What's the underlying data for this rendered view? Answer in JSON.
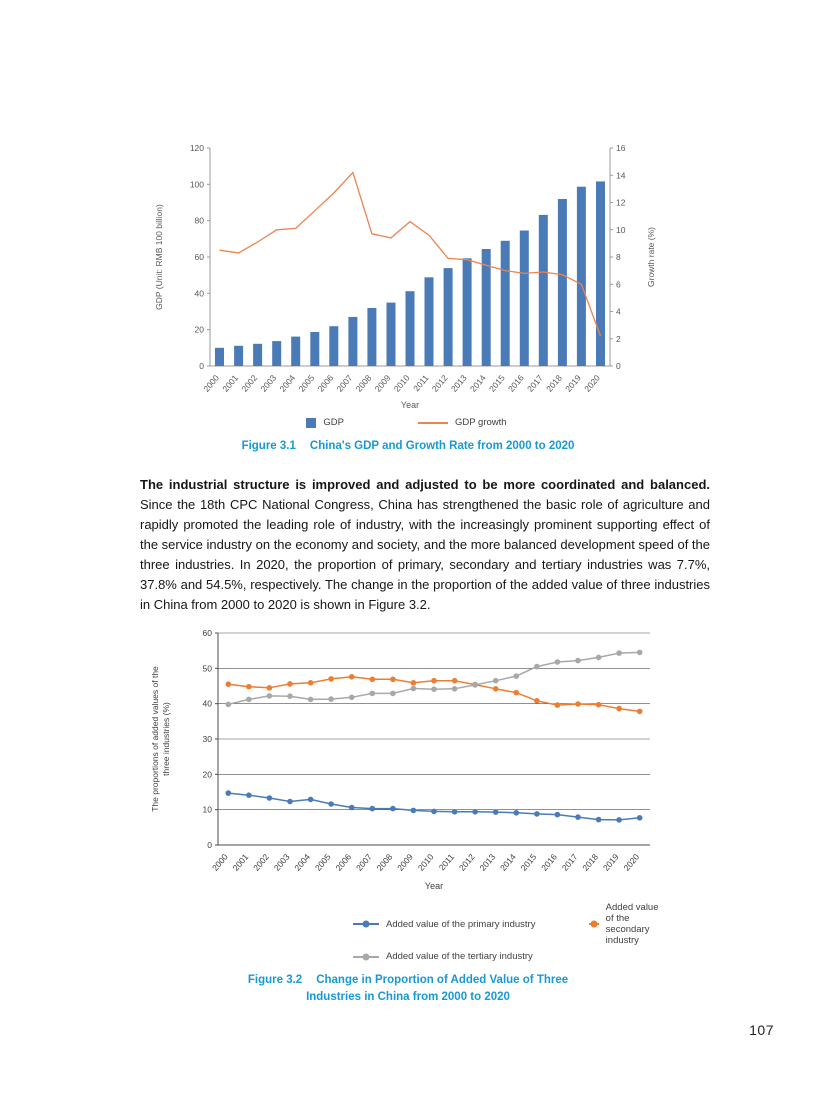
{
  "page": {
    "number": "107"
  },
  "figure1": {
    "caption_label": "Figure 3.1",
    "caption_title": "China's GDP and Growth Rate from 2000 to 2020"
  },
  "paragraph": {
    "bold": "The industrial structure is improved and adjusted to be more coordinated and balanced.",
    "text": " Since the 18th CPC National Congress, China has strengthened the basic role of agriculture and rapidly promoted the leading role of industry, with the increasingly prominent supporting effect of the service industry on the economy and society, and the more balanced development speed of the three industries. In 2020, the proportion of primary, secondary and tertiary industries was 7.7%, 37.8% and 54.5%, respectively. The change in the proportion of the added value of three industries in China from 2000 to 2020 is shown in Figure 3.2."
  },
  "figure2": {
    "caption_label": "Figure 3.2",
    "caption_title_line1": "Change in Proportion of Added Value of Three",
    "caption_title_line2": "Industries in China from 2000 to 2020"
  },
  "colors": {
    "caption_blue": "#1899d5",
    "bar_blue": "#4a7bb7",
    "growth_orange": "#ea8550",
    "primary_blue": "#4a7bb7",
    "secondary_orange": "#ed7d31",
    "tertiary_gray": "#a8a8a8"
  },
  "chart_data": [
    {
      "type": "bar",
      "title": "China's GDP and Growth Rate from 2000 to 2020",
      "categories": [
        "2000",
        "2001",
        "2002",
        "2003",
        "2004",
        "2005",
        "2006",
        "2007",
        "2008",
        "2009",
        "2010",
        "2011",
        "2012",
        "2013",
        "2014",
        "2015",
        "2016",
        "2017",
        "2018",
        "2019",
        "2020"
      ],
      "series": [
        {
          "name": "GDP",
          "type": "bar",
          "axis": "left",
          "color": "#4a7bb7",
          "values": [
            10.0,
            11.1,
            12.2,
            13.7,
            16.2,
            18.7,
            21.9,
            27.0,
            31.9,
            34.9,
            41.2,
            48.8,
            53.9,
            59.3,
            64.4,
            68.9,
            74.6,
            83.2,
            91.9,
            98.7,
            101.6
          ]
        },
        {
          "name": "GDP growth",
          "type": "line",
          "axis": "right",
          "color": "#ea8550",
          "values": [
            8.5,
            8.3,
            9.1,
            10.0,
            10.1,
            11.4,
            12.7,
            14.2,
            9.7,
            9.4,
            10.6,
            9.6,
            7.9,
            7.8,
            7.4,
            7.0,
            6.8,
            6.9,
            6.7,
            6.0,
            2.2
          ]
        }
      ],
      "xlabel": "Year",
      "ylabel_left": "GDP (Unit: RMB 100 billion)",
      "ylabel_right": "Growth rate (%)",
      "ylim_left": [
        0,
        120
      ],
      "ylim_right": [
        0,
        16
      ],
      "yticks_left": [
        0,
        20,
        40,
        60,
        80,
        100,
        120
      ],
      "yticks_right": [
        0,
        2,
        4,
        6,
        8,
        10,
        12,
        14,
        16
      ],
      "grid": false,
      "legend_position": "bottom"
    },
    {
      "type": "line",
      "title": "Change in Proportion of Added Value of Three Industries in China from 2000 to 2020",
      "categories": [
        "2000",
        "2001",
        "2002",
        "2003",
        "2004",
        "2005",
        "2006",
        "2007",
        "2008",
        "2009",
        "2010",
        "2011",
        "2012",
        "2013",
        "2014",
        "2015",
        "2016",
        "2017",
        "2018",
        "2019",
        "2020"
      ],
      "series": [
        {
          "name": "Added value of the primary industry",
          "color": "#4a7bb7",
          "values": [
            14.7,
            14.1,
            13.3,
            12.3,
            12.9,
            11.6,
            10.6,
            10.3,
            10.3,
            9.8,
            9.5,
            9.4,
            9.4,
            9.3,
            9.1,
            8.8,
            8.6,
            7.9,
            7.2,
            7.1,
            7.7
          ]
        },
        {
          "name": "Added value of the secondary industry",
          "color": "#ed7d31",
          "values": [
            45.5,
            44.8,
            44.5,
            45.6,
            45.9,
            47.0,
            47.6,
            46.9,
            46.9,
            45.9,
            46.5,
            46.5,
            45.4,
            44.2,
            43.1,
            40.8,
            39.6,
            39.9,
            39.7,
            38.6,
            37.8
          ]
        },
        {
          "name": "Added value of the tertiary industry",
          "color": "#a8a8a8",
          "values": [
            39.8,
            41.2,
            42.2,
            42.1,
            41.2,
            41.3,
            41.8,
            42.9,
            42.9,
            44.3,
            44.1,
            44.2,
            45.3,
            46.5,
            47.8,
            50.5,
            51.8,
            52.2,
            53.1,
            54.3,
            54.5
          ]
        }
      ],
      "xlabel": "Year",
      "ylabel_lines": [
        "The proportions of added values of the",
        "three industries (%)"
      ],
      "ylim": [
        0,
        60
      ],
      "yticks": [
        0,
        10,
        20,
        30,
        40,
        50,
        60
      ],
      "grid": true,
      "legend_position": "bottom"
    }
  ]
}
